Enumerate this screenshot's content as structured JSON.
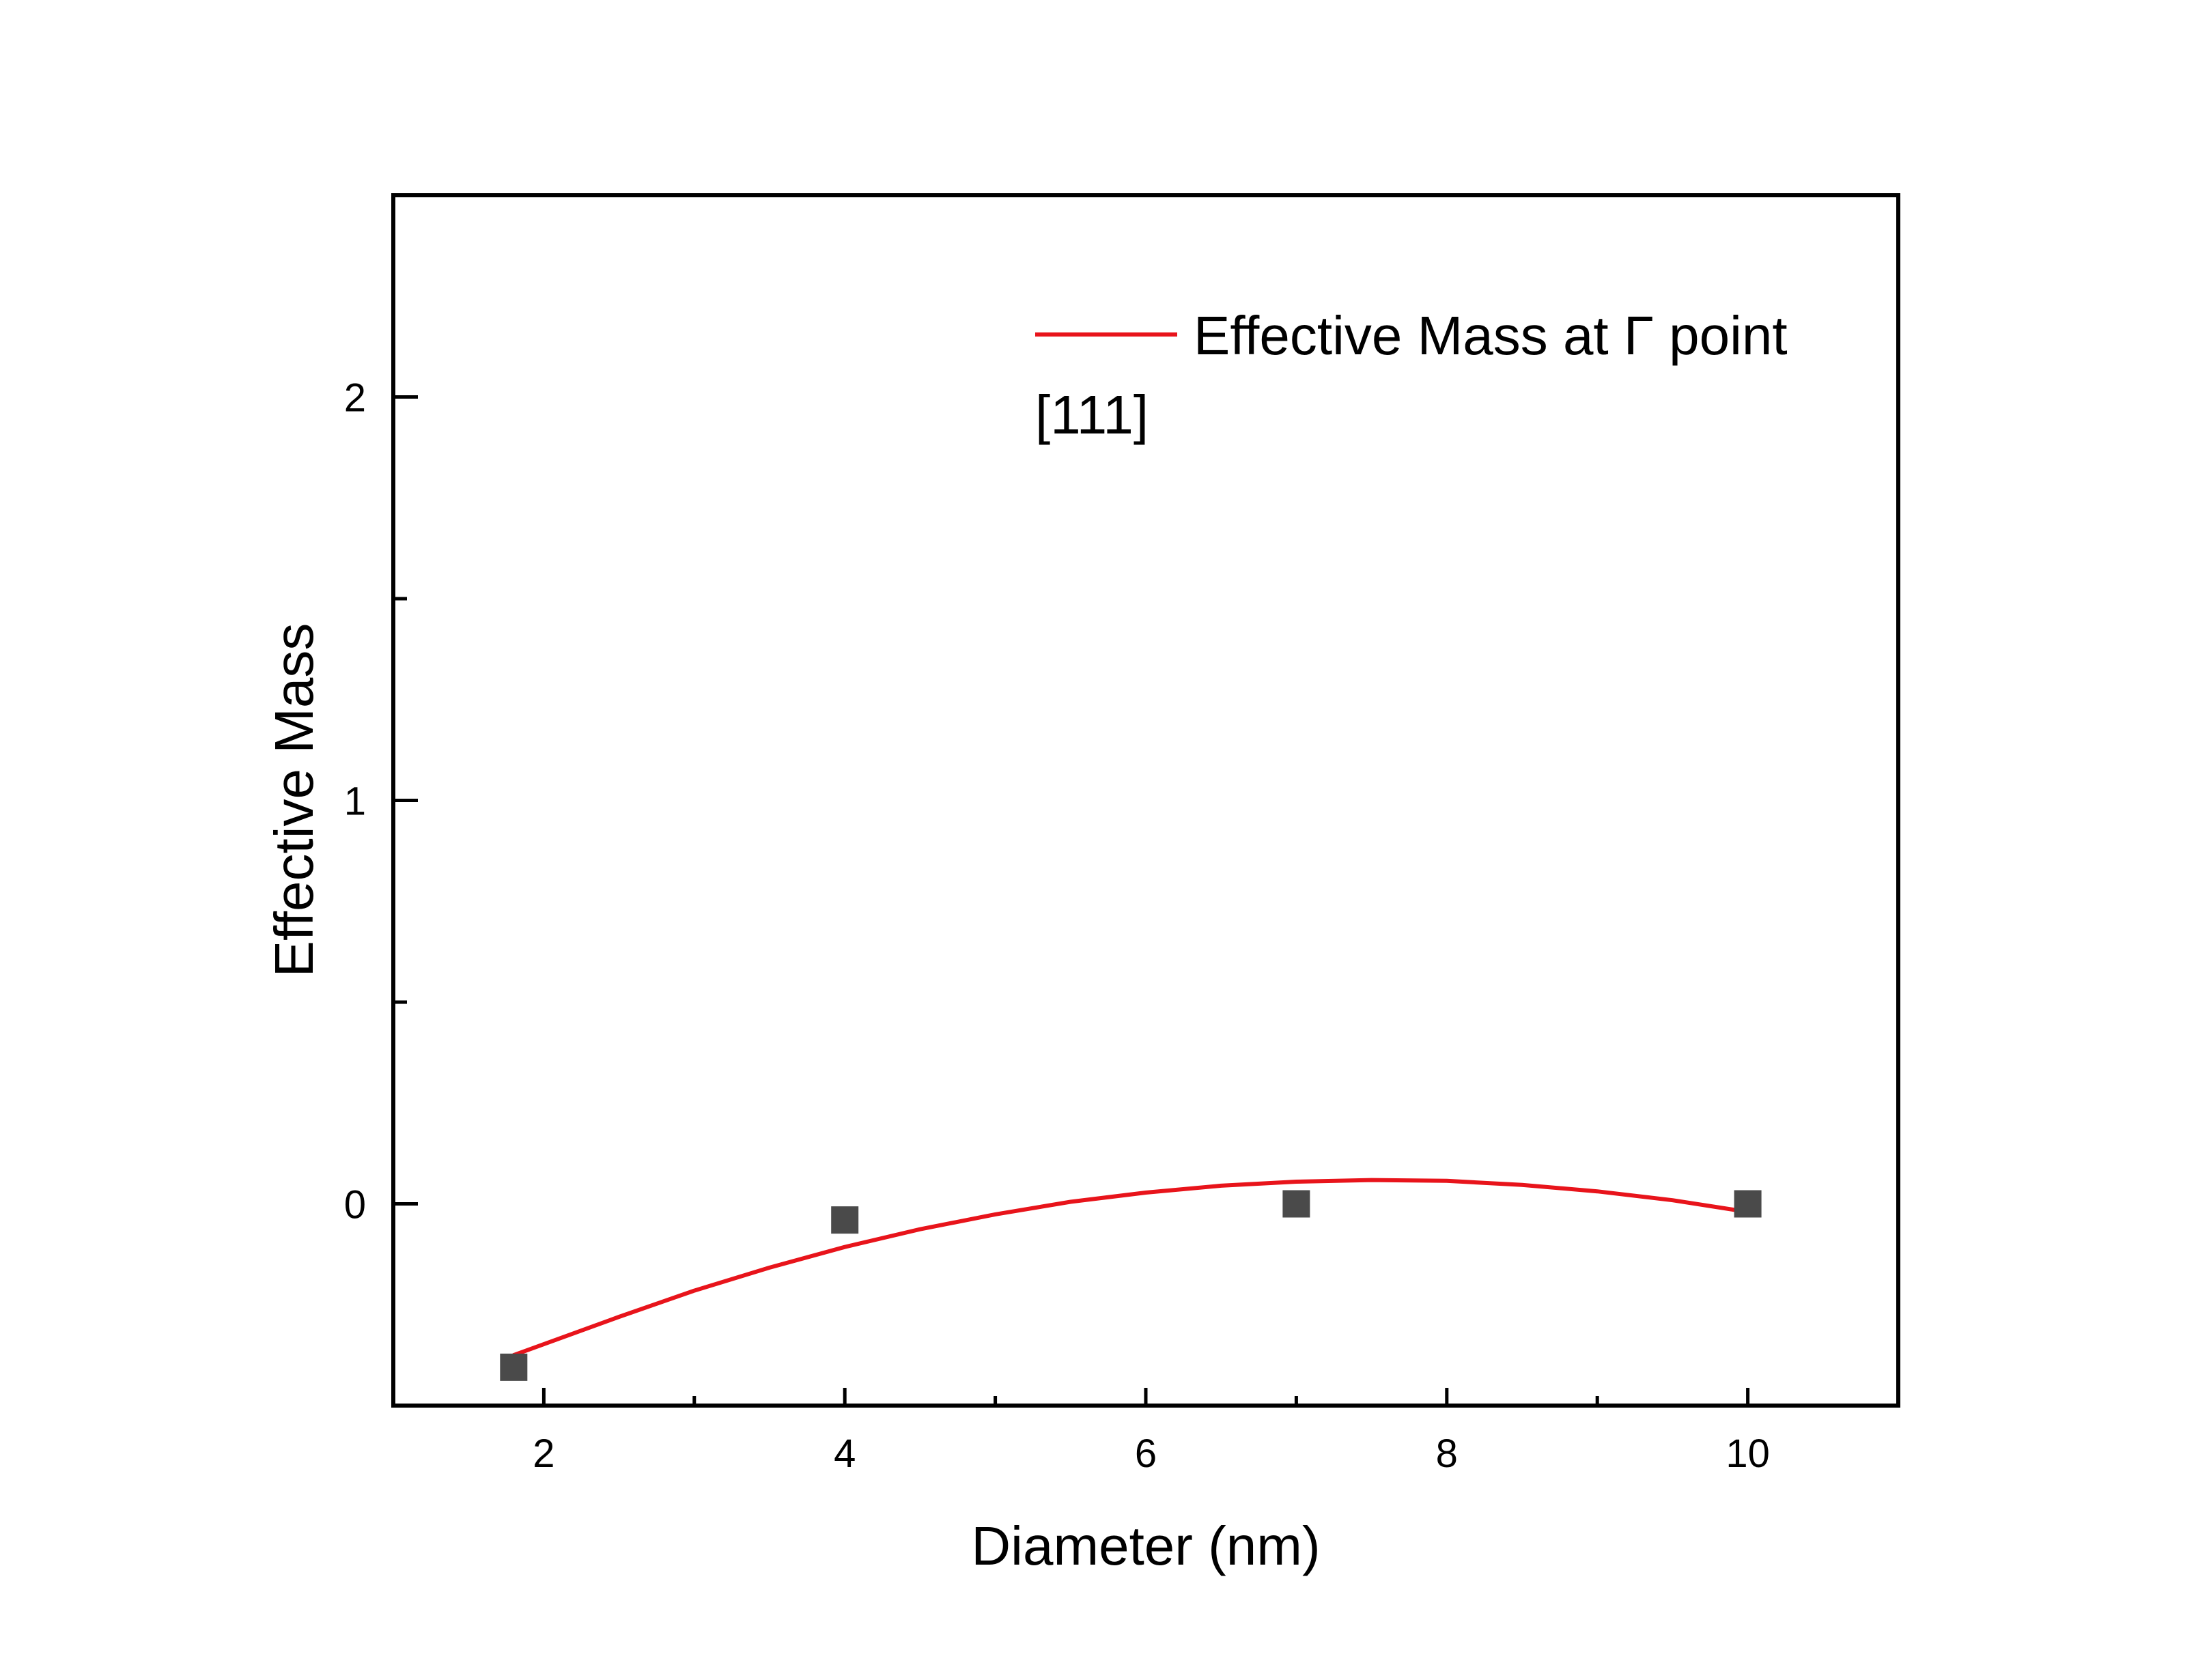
{
  "chart_data": {
    "type": "scatter",
    "xlabel": "Diameter (nm)",
    "ylabel": "Effective Mass",
    "xlim": [
      1,
      11
    ],
    "ylim": [
      -0.5,
      2.5
    ],
    "x_ticks": [
      2,
      4,
      6,
      8,
      10
    ],
    "x_tick_labels": [
      "2",
      "4",
      "6",
      "8",
      "10"
    ],
    "y_ticks": [
      0,
      1,
      2
    ],
    "y_tick_labels": [
      "0",
      "1",
      "2"
    ],
    "grid": false,
    "legend": {
      "placement": "top-right",
      "entries": [
        "Effective Mass at Γ point",
        "[111]"
      ]
    },
    "series": [
      {
        "kind": "points",
        "marker": "square",
        "color": "#4a4a4a",
        "x": [
          1.8,
          4,
          7,
          10
        ],
        "y": [
          -0.405,
          -0.04,
          0.0,
          0.0
        ]
      },
      {
        "name": "Effective Mass at Γ point",
        "kind": "fit-line",
        "color": "#e8141b",
        "x": [
          1.8,
          2.5,
          3.0,
          3.5,
          4.0,
          4.5,
          5.0,
          5.5,
          6.0,
          6.5,
          7.0,
          7.5,
          8.0,
          8.5,
          9.0,
          9.5,
          10.0
        ],
        "y": [
          -0.375,
          -0.28,
          -0.215,
          -0.158,
          -0.107,
          -0.063,
          -0.026,
          0.005,
          0.028,
          0.045,
          0.055,
          0.059,
          0.057,
          0.047,
          0.031,
          0.009,
          -0.02
        ]
      }
    ]
  }
}
